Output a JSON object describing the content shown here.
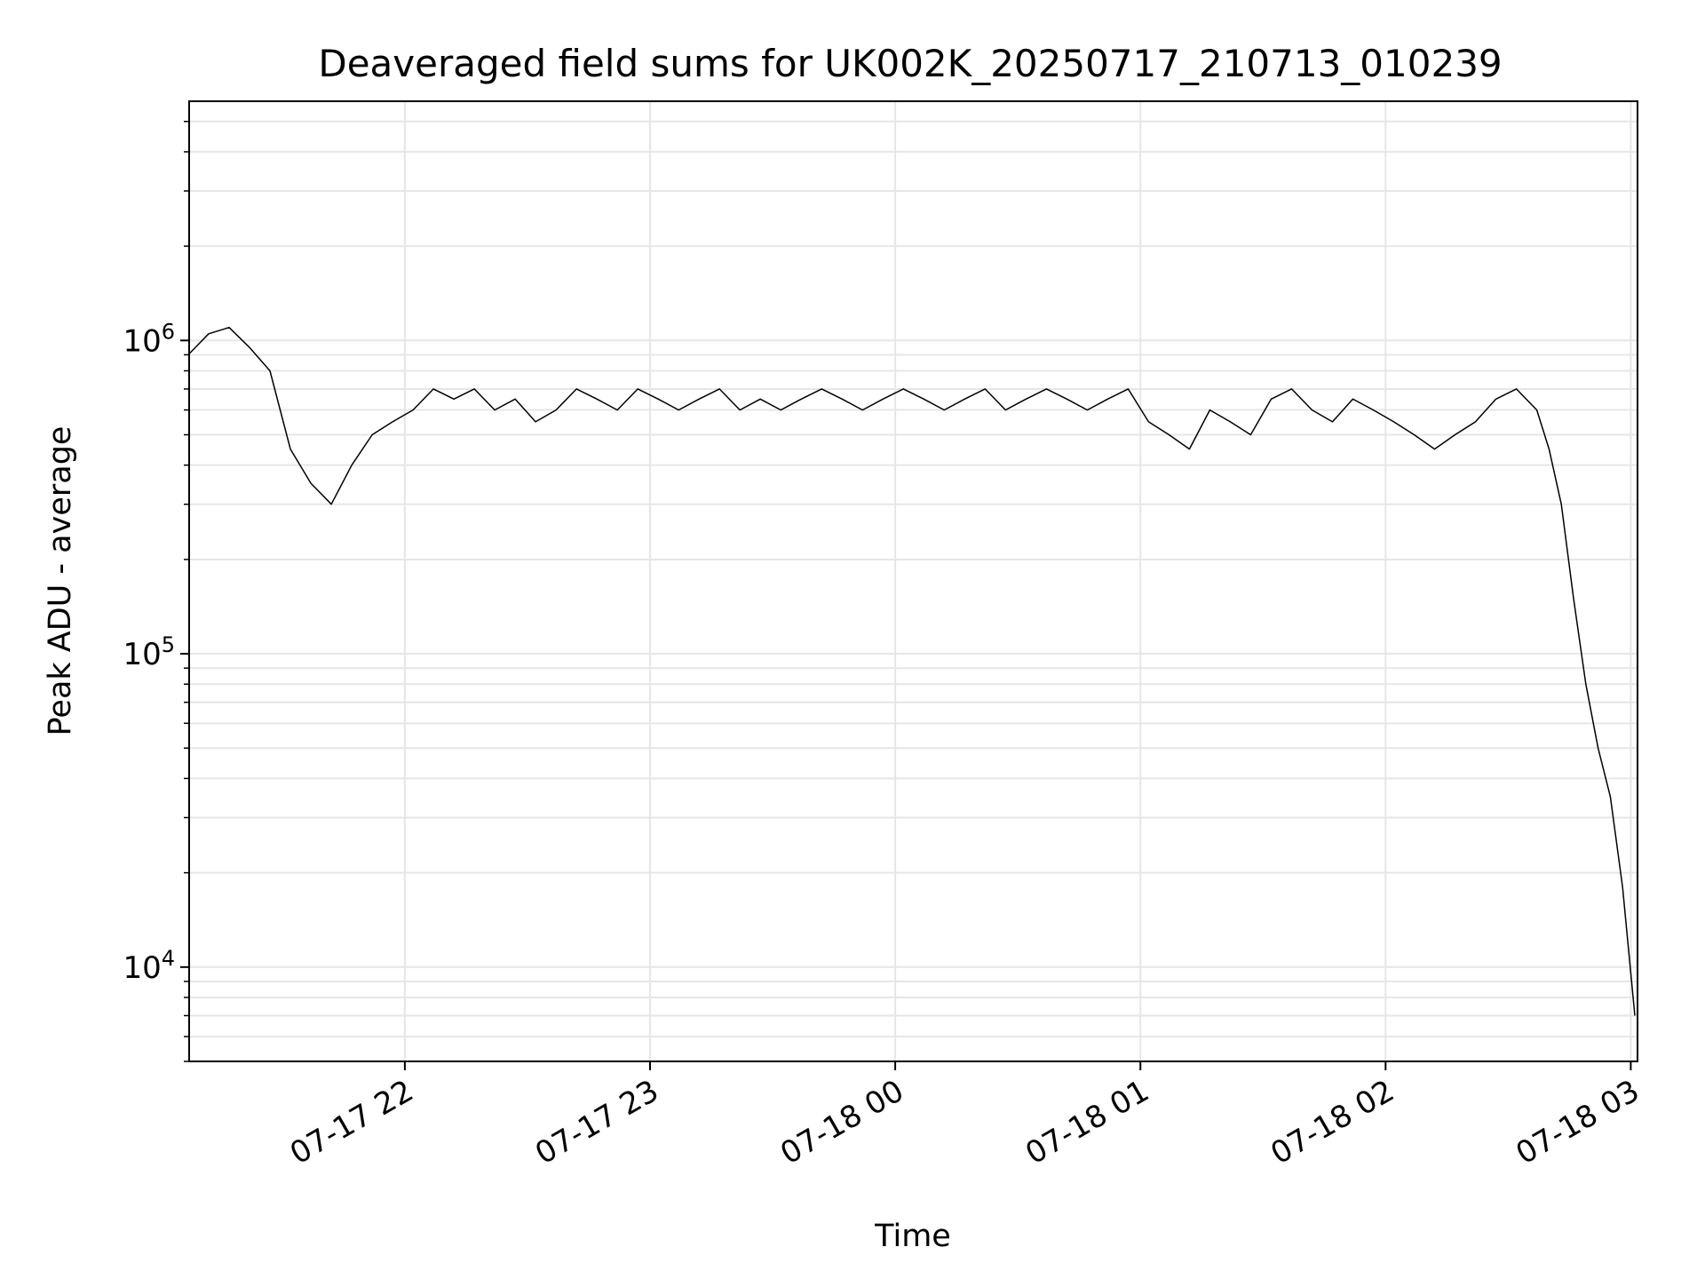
{
  "chart_data": {
    "type": "line",
    "title": "Deaveraged field sums for UK002K_20250717_210713_010239",
    "xlabel": "Time",
    "ylabel": "Peak ADU - average",
    "x_range": [
      "2025-07-17 21:07:13",
      "2025-07-18 03:01:39"
    ],
    "ylim": [
      5000,
      5800000
    ],
    "y_scale": "log",
    "grid": true,
    "legend": "none",
    "x_ticks": [
      {
        "time": "2025-07-17 22:00",
        "label": "07-17 22"
      },
      {
        "time": "2025-07-17 23:00",
        "label": "07-17 23"
      },
      {
        "time": "2025-07-18 00:00",
        "label": "07-18 00"
      },
      {
        "time": "2025-07-18 01:00",
        "label": "07-18 01"
      },
      {
        "time": "2025-07-18 02:00",
        "label": "07-18 02"
      },
      {
        "time": "2025-07-18 03:00",
        "label": "07-18 03"
      }
    ],
    "y_ticks": [
      {
        "value": 10000,
        "base": "10",
        "exp": "4"
      },
      {
        "value": 100000,
        "base": "10",
        "exp": "5"
      },
      {
        "value": 1000000,
        "base": "10",
        "exp": "6"
      }
    ],
    "line_color": "#000000",
    "grid_color": "#e6e6e6",
    "series": [
      {
        "x": [
          "2025-07-17 21:07",
          "2025-07-17 21:12",
          "2025-07-17 21:17",
          "2025-07-17 21:22",
          "2025-07-17 21:27",
          "2025-07-17 21:32",
          "2025-07-17 21:37",
          "2025-07-17 21:42",
          "2025-07-17 21:47",
          "2025-07-17 21:52",
          "2025-07-17 21:57",
          "2025-07-17 22:02",
          "2025-07-17 22:07",
          "2025-07-17 22:12",
          "2025-07-17 22:17",
          "2025-07-17 22:22",
          "2025-07-17 22:27",
          "2025-07-17 22:32",
          "2025-07-17 22:37",
          "2025-07-17 22:42",
          "2025-07-17 22:47",
          "2025-07-17 22:52",
          "2025-07-17 22:57",
          "2025-07-17 23:02",
          "2025-07-17 23:07",
          "2025-07-17 23:12",
          "2025-07-17 23:17",
          "2025-07-17 23:22",
          "2025-07-17 23:27",
          "2025-07-17 23:32",
          "2025-07-17 23:37",
          "2025-07-17 23:42",
          "2025-07-17 23:47",
          "2025-07-17 23:52",
          "2025-07-17 23:57",
          "2025-07-18 00:02",
          "2025-07-18 00:07",
          "2025-07-18 00:12",
          "2025-07-18 00:17",
          "2025-07-18 00:22",
          "2025-07-18 00:27",
          "2025-07-18 00:32",
          "2025-07-18 00:37",
          "2025-07-18 00:42",
          "2025-07-18 00:47",
          "2025-07-18 00:52",
          "2025-07-18 00:57",
          "2025-07-18 01:02",
          "2025-07-18 01:07",
          "2025-07-18 01:12",
          "2025-07-18 01:17",
          "2025-07-18 01:22",
          "2025-07-18 01:27",
          "2025-07-18 01:32",
          "2025-07-18 01:37",
          "2025-07-18 01:42",
          "2025-07-18 01:47",
          "2025-07-18 01:52",
          "2025-07-18 01:57",
          "2025-07-18 02:02",
          "2025-07-18 02:07",
          "2025-07-18 02:12",
          "2025-07-18 02:17",
          "2025-07-18 02:22",
          "2025-07-18 02:27",
          "2025-07-18 02:32",
          "2025-07-18 02:37",
          "2025-07-18 02:40",
          "2025-07-18 02:43",
          "2025-07-18 02:46",
          "2025-07-18 02:49",
          "2025-07-18 02:52",
          "2025-07-18 02:55",
          "2025-07-18 02:58",
          "2025-07-18 03:01"
        ],
        "y": [
          900000,
          1050000,
          1100000,
          950000,
          800000,
          450000,
          350000,
          300000,
          400000,
          500000,
          550000,
          600000,
          700000,
          650000,
          700000,
          600000,
          650000,
          550000,
          600000,
          700000,
          650000,
          600000,
          700000,
          650000,
          600000,
          650000,
          700000,
          600000,
          650000,
          600000,
          650000,
          700000,
          650000,
          600000,
          650000,
          700000,
          650000,
          600000,
          650000,
          700000,
          600000,
          650000,
          700000,
          650000,
          600000,
          650000,
          700000,
          550000,
          500000,
          450000,
          600000,
          550000,
          500000,
          650000,
          700000,
          600000,
          550000,
          650000,
          600000,
          550000,
          500000,
          450000,
          500000,
          550000,
          650000,
          700000,
          600000,
          450000,
          300000,
          150000,
          80000,
          50000,
          35000,
          18000,
          7000
        ]
      }
    ]
  }
}
